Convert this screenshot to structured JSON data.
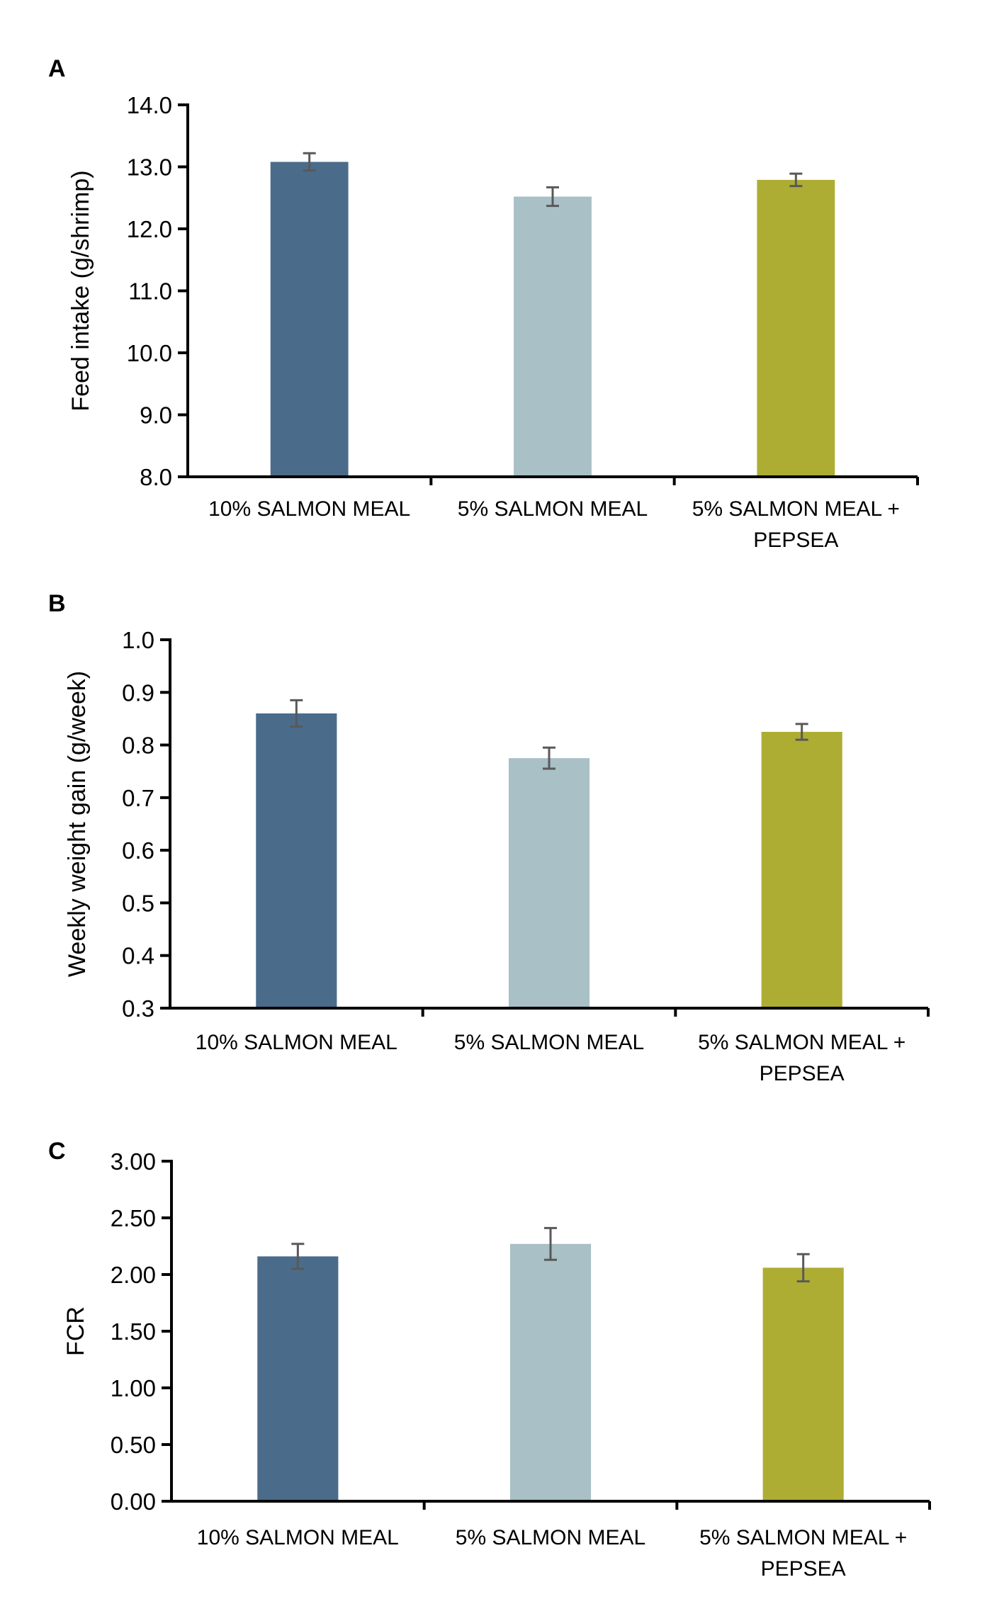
{
  "chart_data": [
    {
      "type": "bar",
      "panel": "A",
      "categories": [
        [
          "10% SALMON MEAL"
        ],
        [
          "5% SALMON MEAL"
        ],
        [
          "5% SALMON MEAL +",
          "PEPSEA"
        ]
      ],
      "values": [
        13.08,
        12.52,
        12.79
      ],
      "errors": [
        0.14,
        0.15,
        0.1
      ],
      "ylabel": "Feed intake (g/shrimp)",
      "ylim": [
        8.0,
        14.0
      ],
      "yticks": [
        8.0,
        9.0,
        10.0,
        11.0,
        12.0,
        13.0,
        14.0
      ],
      "tick_decimals": 1,
      "grid": false,
      "colors": [
        "#4a6c8a",
        "#a8c0c6",
        "#adad33"
      ]
    },
    {
      "type": "bar",
      "panel": "B",
      "categories": [
        [
          "10% SALMON MEAL"
        ],
        [
          "5% SALMON MEAL"
        ],
        [
          "5% SALMON MEAL +",
          "PEPSEA"
        ]
      ],
      "values": [
        0.86,
        0.775,
        0.825
      ],
      "errors": [
        0.025,
        0.02,
        0.015
      ],
      "ylabel": "Weekly weight gain (g/week)",
      "ylim": [
        0.3,
        1.0
      ],
      "yticks": [
        0.3,
        0.4,
        0.5,
        0.6,
        0.7,
        0.8,
        0.9,
        1.0
      ],
      "tick_decimals": 1,
      "grid": false,
      "colors": [
        "#4a6c8a",
        "#a8c0c6",
        "#adad33"
      ]
    },
    {
      "type": "bar",
      "panel": "C",
      "categories": [
        [
          "10% SALMON MEAL"
        ],
        [
          "5% SALMON MEAL"
        ],
        [
          "5% SALMON MEAL +",
          "PEPSEA"
        ]
      ],
      "values": [
        2.16,
        2.27,
        2.06
      ],
      "errors": [
        0.11,
        0.14,
        0.12
      ],
      "ylabel": "FCR",
      "ylim": [
        0.0,
        3.0
      ],
      "yticks": [
        0.0,
        0.5,
        1.0,
        1.5,
        2.0,
        2.5,
        3.0
      ],
      "tick_decimals": 2,
      "grid": false,
      "colors": [
        "#4a6c8a",
        "#a8c0c6",
        "#adad33"
      ]
    }
  ]
}
